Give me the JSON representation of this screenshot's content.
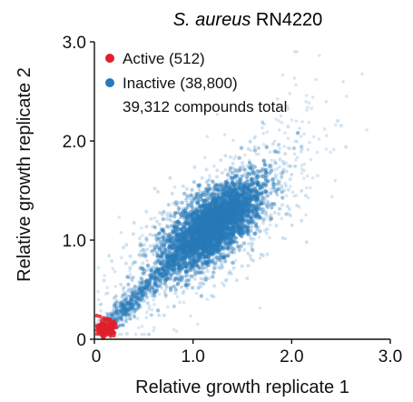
{
  "chart_data": {
    "type": "scatter",
    "title": {
      "italic": "S. aureus",
      "rest": " RN4220"
    },
    "xlabel": "Relative growth replicate 1",
    "ylabel": "Relative growth replicate 2",
    "xlim": [
      0,
      3.0
    ],
    "ylim": [
      0,
      3.0
    ],
    "xticks": [
      0,
      1.0,
      2.0,
      3.0
    ],
    "xtick_labels": [
      "0",
      "1.0",
      "2.0",
      "3.0"
    ],
    "yticks": [
      0,
      1.0,
      2.0,
      3.0
    ],
    "ytick_labels": [
      "0",
      "1.0",
      "2.0",
      "3.0"
    ],
    "grid": false,
    "legend_position": "top-left",
    "series": [
      {
        "name": "Active (512)",
        "color": "#e0202a",
        "count": 512,
        "center": [
          0.12,
          0.11
        ],
        "spread": [
          0.04,
          0.04
        ]
      },
      {
        "name": "Inactive (38,800)",
        "color": "#2979b9",
        "count": 38800,
        "dense_region": {
          "x": [
            0.8,
            1.6
          ],
          "y": [
            0.8,
            1.5
          ]
        },
        "diagonal_tail": {
          "x": [
            0.1,
            0.8
          ],
          "y": [
            0.1,
            0.8
          ]
        },
        "outlier_extent": {
          "x": [
            0.1,
            2.9
          ],
          "y": [
            0.1,
            2.9
          ]
        }
      }
    ],
    "annotation": "39,312 compounds total"
  }
}
